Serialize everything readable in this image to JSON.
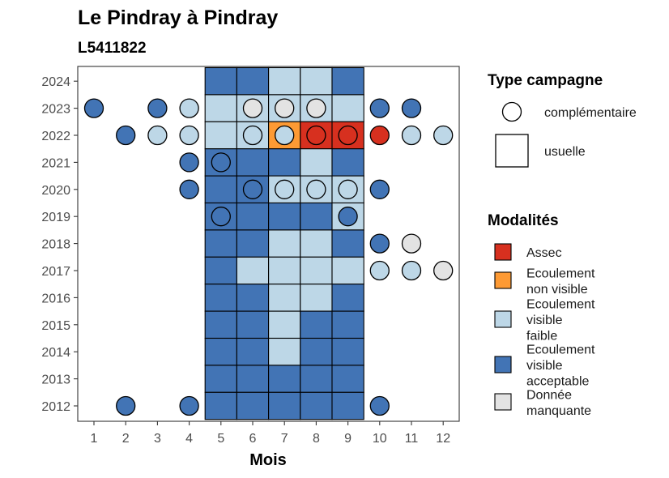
{
  "chart_data": {
    "type": "heatmap",
    "title": "Le Pindray à Pindray",
    "subtitle": "L5411822",
    "xlabel": "Mois",
    "ylabel": "",
    "x_ticks": [
      1,
      2,
      3,
      4,
      5,
      6,
      7,
      8,
      9,
      10,
      11,
      12
    ],
    "y_ticks": [
      2012,
      2013,
      2014,
      2015,
      2016,
      2017,
      2018,
      2019,
      2020,
      2021,
      2022,
      2023,
      2024
    ],
    "colors": {
      "Assec": "#d7301f",
      "Ecoulement non visible": "#fd9a34",
      "Ecoulement visible faible": "#bdd7e7",
      "Ecoulement visible acceptable": "#4274b5",
      "Donnée manquante": "#e3e3e3"
    },
    "legend_campagne": {
      "title": "Type campagne",
      "items": [
        {
          "label": "complémentaire",
          "shape": "circle"
        },
        {
          "label": "usuelle",
          "shape": "square"
        }
      ]
    },
    "legend_modalites": {
      "title": "Modalités",
      "items": [
        {
          "key": "Assec",
          "lines": [
            "Assec"
          ]
        },
        {
          "key": "Ecoulement non visible",
          "lines": [
            "Ecoulement",
            "non visible"
          ]
        },
        {
          "key": "Ecoulement visible faible",
          "lines": [
            "Ecoulement",
            "visible",
            "faible"
          ]
        },
        {
          "key": "Ecoulement visible acceptable",
          "lines": [
            "Ecoulement",
            "visible",
            "acceptable"
          ]
        },
        {
          "key": "Donnée manquante",
          "lines": [
            "Donnée",
            "manquante"
          ]
        }
      ]
    },
    "usuelle": [
      {
        "year": 2024,
        "values": [
          [
            "5",
            "Ecoulement visible acceptable"
          ],
          [
            "6",
            "Ecoulement visible acceptable"
          ],
          [
            "7",
            "Ecoulement visible faible"
          ],
          [
            "8",
            "Ecoulement visible faible"
          ],
          [
            "9",
            "Ecoulement visible acceptable"
          ]
        ]
      },
      {
        "year": 2023,
        "values": [
          [
            "5",
            "Ecoulement visible faible"
          ],
          [
            "6",
            "Ecoulement visible faible"
          ],
          [
            "7",
            "Ecoulement visible faible"
          ],
          [
            "8",
            "Ecoulement visible faible"
          ],
          [
            "9",
            "Ecoulement visible faible"
          ]
        ]
      },
      {
        "year": 2022,
        "values": [
          [
            "5",
            "Ecoulement visible faible"
          ],
          [
            "6",
            "Ecoulement visible faible"
          ],
          [
            "7",
            "Ecoulement non visible"
          ],
          [
            "8",
            "Assec"
          ],
          [
            "9",
            "Assec"
          ]
        ]
      },
      {
        "year": 2021,
        "values": [
          [
            "5",
            "Ecoulement visible acceptable"
          ],
          [
            "6",
            "Ecoulement visible acceptable"
          ],
          [
            "7",
            "Ecoulement visible acceptable"
          ],
          [
            "8",
            "Ecoulement visible faible"
          ],
          [
            "9",
            "Ecoulement visible acceptable"
          ]
        ]
      },
      {
        "year": 2020,
        "values": [
          [
            "5",
            "Ecoulement visible acceptable"
          ],
          [
            "6",
            "Ecoulement visible acceptable"
          ],
          [
            "7",
            "Ecoulement visible faible"
          ],
          [
            "8",
            "Ecoulement visible faible"
          ],
          [
            "9",
            "Ecoulement visible faible"
          ]
        ]
      },
      {
        "year": 2019,
        "values": [
          [
            "5",
            "Ecoulement visible acceptable"
          ],
          [
            "6",
            "Ecoulement visible acceptable"
          ],
          [
            "7",
            "Ecoulement visible acceptable"
          ],
          [
            "8",
            "Ecoulement visible acceptable"
          ],
          [
            "9",
            "Ecoulement visible faible"
          ]
        ]
      },
      {
        "year": 2018,
        "values": [
          [
            "5",
            "Ecoulement visible acceptable"
          ],
          [
            "6",
            "Ecoulement visible acceptable"
          ],
          [
            "7",
            "Ecoulement visible faible"
          ],
          [
            "8",
            "Ecoulement visible faible"
          ],
          [
            "9",
            "Ecoulement visible acceptable"
          ]
        ]
      },
      {
        "year": 2017,
        "values": [
          [
            "5",
            "Ecoulement visible acceptable"
          ],
          [
            "6",
            "Ecoulement visible faible"
          ],
          [
            "7",
            "Ecoulement visible faible"
          ],
          [
            "8",
            "Ecoulement visible faible"
          ],
          [
            "9",
            "Ecoulement visible faible"
          ]
        ]
      },
      {
        "year": 2016,
        "values": [
          [
            "5",
            "Ecoulement visible acceptable"
          ],
          [
            "6",
            "Ecoulement visible acceptable"
          ],
          [
            "7",
            "Ecoulement visible faible"
          ],
          [
            "8",
            "Ecoulement visible faible"
          ],
          [
            "9",
            "Ecoulement visible acceptable"
          ]
        ]
      },
      {
        "year": 2015,
        "values": [
          [
            "5",
            "Ecoulement visible acceptable"
          ],
          [
            "6",
            "Ecoulement visible acceptable"
          ],
          [
            "7",
            "Ecoulement visible faible"
          ],
          [
            "8",
            "Ecoulement visible acceptable"
          ],
          [
            "9",
            "Ecoulement visible acceptable"
          ]
        ]
      },
      {
        "year": 2014,
        "values": [
          [
            "5",
            "Ecoulement visible acceptable"
          ],
          [
            "6",
            "Ecoulement visible acceptable"
          ],
          [
            "7",
            "Ecoulement visible faible"
          ],
          [
            "8",
            "Ecoulement visible acceptable"
          ],
          [
            "9",
            "Ecoulement visible acceptable"
          ]
        ]
      },
      {
        "year": 2013,
        "values": [
          [
            "5",
            "Ecoulement visible acceptable"
          ],
          [
            "6",
            "Ecoulement visible acceptable"
          ],
          [
            "7",
            "Ecoulement visible acceptable"
          ],
          [
            "8",
            "Ecoulement visible acceptable"
          ],
          [
            "9",
            "Ecoulement visible acceptable"
          ]
        ]
      },
      {
        "year": 2012,
        "values": [
          [
            "5",
            "Ecoulement visible acceptable"
          ],
          [
            "6",
            "Ecoulement visible acceptable"
          ],
          [
            "7",
            "Ecoulement visible acceptable"
          ],
          [
            "8",
            "Ecoulement visible acceptable"
          ],
          [
            "9",
            "Ecoulement visible acceptable"
          ]
        ]
      }
    ],
    "complementaire": [
      {
        "year": 2023,
        "values": [
          [
            "1",
            "Ecoulement visible acceptable"
          ],
          [
            "3",
            "Ecoulement visible acceptable"
          ],
          [
            "4",
            "Ecoulement visible faible"
          ],
          [
            "6",
            "Donnée manquante"
          ],
          [
            "7",
            "Donnée manquante"
          ],
          [
            "8",
            "Donnée manquante"
          ],
          [
            "10",
            "Ecoulement visible acceptable"
          ],
          [
            "11",
            "Ecoulement visible acceptable"
          ]
        ]
      },
      {
        "year": 2022,
        "values": [
          [
            "2",
            "Ecoulement visible acceptable"
          ],
          [
            "3",
            "Ecoulement visible faible"
          ],
          [
            "4",
            "Ecoulement visible faible"
          ],
          [
            "6",
            "Ecoulement visible faible"
          ],
          [
            "7",
            "Ecoulement visible faible"
          ],
          [
            "8",
            "Assec"
          ],
          [
            "9",
            "Assec"
          ],
          [
            "10",
            "Assec"
          ],
          [
            "11",
            "Ecoulement visible faible"
          ],
          [
            "12",
            "Ecoulement visible faible"
          ]
        ]
      },
      {
        "year": 2021,
        "values": [
          [
            "4",
            "Ecoulement visible acceptable"
          ],
          [
            "5",
            "Ecoulement visible acceptable"
          ]
        ]
      },
      {
        "year": 2020,
        "values": [
          [
            "4",
            "Ecoulement visible acceptable"
          ],
          [
            "6",
            "Ecoulement visible acceptable"
          ],
          [
            "7",
            "Ecoulement visible faible"
          ],
          [
            "8",
            "Ecoulement visible faible"
          ],
          [
            "9",
            "Ecoulement visible faible"
          ],
          [
            "10",
            "Ecoulement visible acceptable"
          ]
        ]
      },
      {
        "year": 2019,
        "values": [
          [
            "5",
            "Ecoulement visible acceptable"
          ],
          [
            "9",
            "Ecoulement visible acceptable"
          ]
        ]
      },
      {
        "year": 2018,
        "values": [
          [
            "10",
            "Ecoulement visible acceptable"
          ],
          [
            "11",
            "Donnée manquante"
          ]
        ]
      },
      {
        "year": 2017,
        "values": [
          [
            "10",
            "Ecoulement visible faible"
          ],
          [
            "11",
            "Ecoulement visible faible"
          ],
          [
            "12",
            "Donnée manquante"
          ]
        ]
      },
      {
        "year": 2012,
        "values": [
          [
            "2",
            "Ecoulement visible acceptable"
          ],
          [
            "4",
            "Ecoulement visible acceptable"
          ],
          [
            "10",
            "Ecoulement visible acceptable"
          ]
        ]
      }
    ]
  }
}
